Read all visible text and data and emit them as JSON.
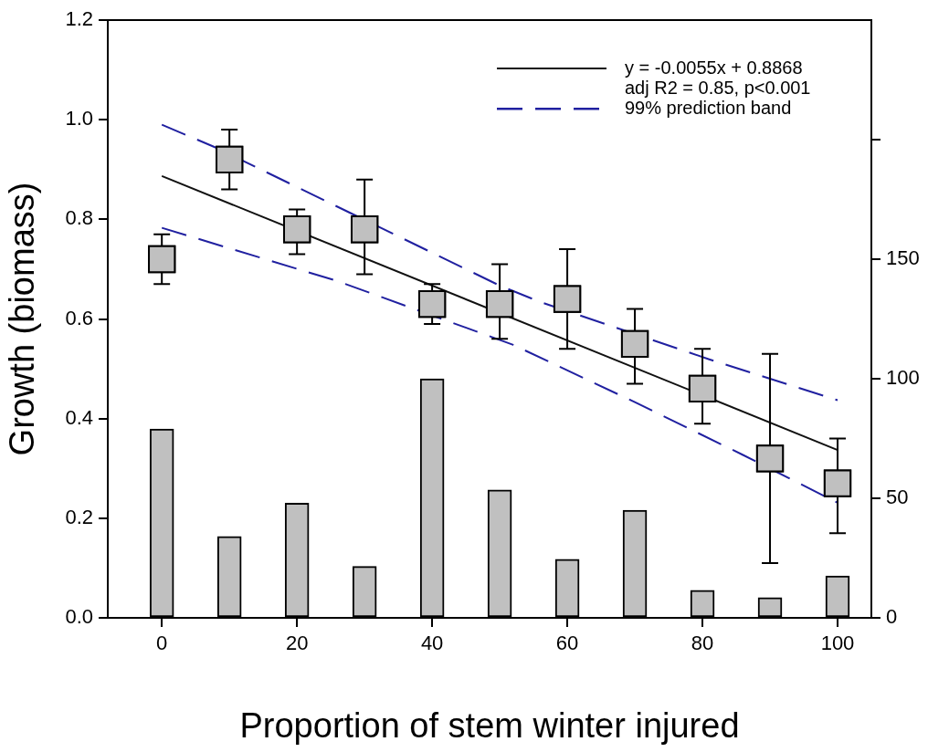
{
  "chart_data": {
    "type": "scatter",
    "xlabel": "Proportion of stem winter injured",
    "ylabel": "Growth (biomass)",
    "xlim": [
      -8,
      105
    ],
    "xticks": [
      0,
      20,
      40,
      60,
      80,
      100
    ],
    "ylim": [
      0,
      1.2
    ],
    "yticks": [
      {
        "value": 0,
        "label": "0.0"
      },
      0.2,
      0.4,
      0.6,
      0.8,
      {
        "value": 1,
        "label": "1.0"
      },
      1.2
    ],
    "y2lim": [
      0,
      250
    ],
    "y2ticks": [
      0,
      50,
      100,
      150,
      {
        "value": 200,
        "label": null
      }
    ],
    "legend": "top right",
    "grid": false,
    "annotations": [
      "adj R2 = 0.85, p<0.001"
    ],
    "series": [
      {
        "type": "bar",
        "axis": "y2",
        "color": "#c0c0c0",
        "x": [
          0,
          10,
          20,
          30,
          40,
          50,
          60,
          70,
          80,
          90,
          100
        ],
        "values": [
          79,
          34,
          48,
          21.5,
          100,
          53.5,
          24.5,
          45,
          11.5,
          8.5,
          17.5
        ]
      },
      {
        "type": "line",
        "name": "y = -0.0055x + 0.8868",
        "color": "#111111",
        "line_style": "solid",
        "marker": "none",
        "x": [
          0,
          100
        ],
        "values": [
          0.887,
          0.337
        ]
      },
      {
        "type": "line",
        "name": "99% prediction band",
        "color": "#2020a0",
        "line_style": "dashed",
        "marker": "none",
        "x": [
          0,
          8,
          50,
          56,
          81,
          100
        ],
        "values": [
          0.99,
          0.944,
          0.667,
          0.634,
          0.519,
          0.437
        ]
      },
      {
        "type": "line",
        "color": "#2020a0",
        "line_style": "dashed",
        "marker": "none",
        "x": [
          0,
          26,
          52,
          70,
          86,
          100
        ],
        "values": [
          0.783,
          0.676,
          0.548,
          0.433,
          0.327,
          0.231
        ]
      },
      {
        "color": "#c0c0c0",
        "marker": "square",
        "x": [
          0,
          10,
          20,
          30,
          40,
          50,
          60,
          70,
          80,
          90,
          100
        ],
        "values": [
          0.72,
          0.92,
          0.78,
          0.78,
          0.63,
          0.63,
          0.64,
          0.55,
          0.46,
          0.32,
          0.27
        ],
        "errors": [
          [
            0.67,
            0.77
          ],
          [
            0.86,
            0.98
          ],
          [
            0.73,
            0.82
          ],
          [
            0.69,
            0.88
          ],
          [
            0.59,
            0.67
          ],
          [
            0.56,
            0.71
          ],
          [
            0.54,
            0.74
          ],
          [
            0.47,
            0.62
          ],
          [
            0.39,
            0.54
          ],
          [
            0.11,
            0.53
          ],
          [
            0.17,
            0.36
          ]
        ]
      }
    ]
  }
}
